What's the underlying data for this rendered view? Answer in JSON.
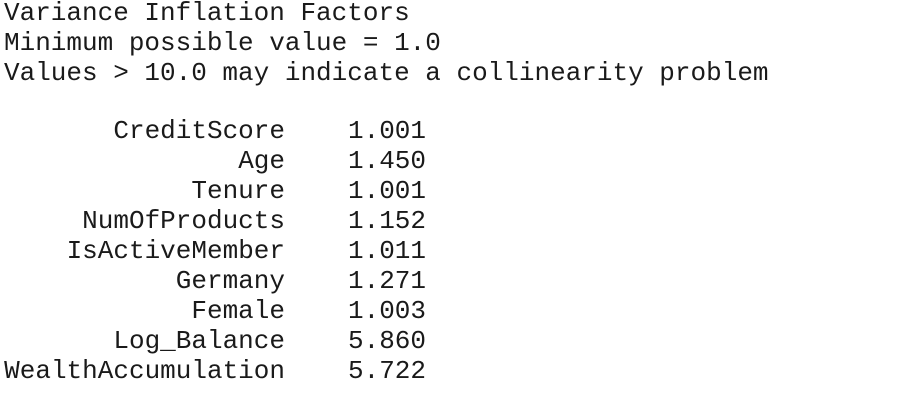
{
  "header": {
    "title": "Variance Inflation Factors",
    "note_min": "Minimum possible value = 1.0",
    "note_threshold": "Values > 10.0 may indicate a collinearity problem"
  },
  "table": {
    "rows": [
      [
        "CreditScore",
        "1.001"
      ],
      [
        "Age",
        "1.450"
      ],
      [
        "Tenure",
        "1.001"
      ],
      [
        "NumOfProducts",
        "1.152"
      ],
      [
        "IsActiveMember",
        "1.011"
      ],
      [
        "Germany",
        "1.271"
      ],
      [
        "Female",
        "1.003"
      ],
      [
        "Log_Balance",
        "5.860"
      ],
      [
        "WealthAccumulation",
        "5.722"
      ]
    ]
  }
}
